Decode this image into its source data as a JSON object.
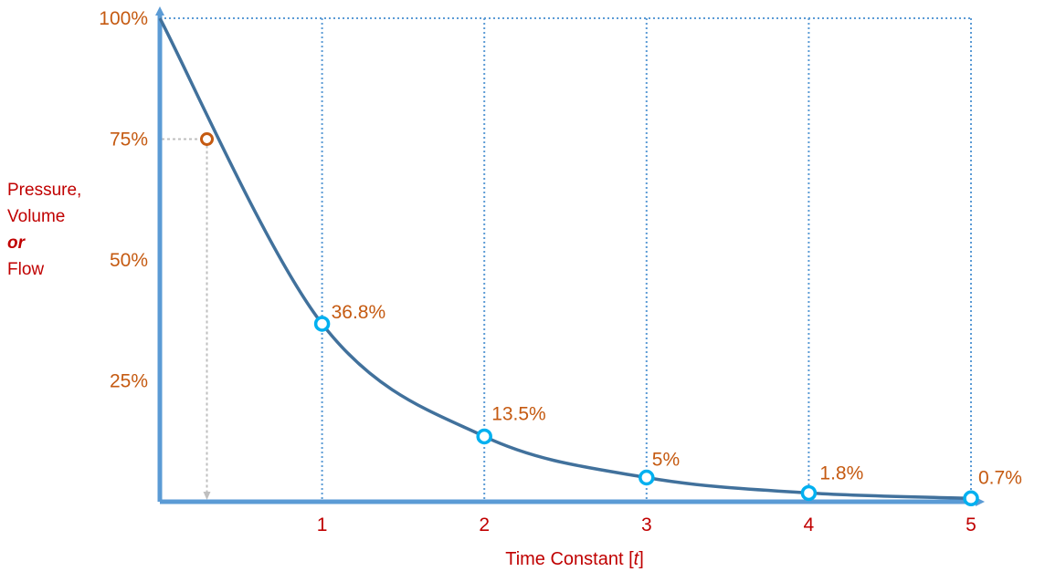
{
  "chart_data": {
    "type": "line",
    "xlabel_prefix": "Time Constant [",
    "xlabel_var": "t",
    "xlabel_suffix": "]",
    "ylabel_lines": [
      "Pressure,",
      "Volume",
      "or",
      "Flow"
    ],
    "x_ticks": [
      "1",
      "2",
      "3",
      "4",
      "5"
    ],
    "y_ticks": [
      {
        "value": 100,
        "label": "100%"
      },
      {
        "value": 75,
        "label": "75%"
      },
      {
        "value": 50,
        "label": "50%"
      },
      {
        "value": 25,
        "label": "25%"
      }
    ],
    "xlim": [
      0,
      5
    ],
    "ylim": [
      0,
      100
    ],
    "series": [
      {
        "x": [
          0,
          1,
          2,
          3,
          4,
          5
        ],
        "y": [
          100,
          36.8,
          13.5,
          5,
          1.8,
          0.7
        ]
      }
    ],
    "highlight_points": [
      {
        "x": 1,
        "y": 36.8,
        "label": "36.8%"
      },
      {
        "x": 2,
        "y": 13.5,
        "label": "13.5%"
      },
      {
        "x": 3,
        "y": 5,
        "label": "5%"
      },
      {
        "x": 4,
        "y": 1.8,
        "label": "1.8%"
      },
      {
        "x": 5,
        "y": 0.7,
        "label": "0.7%"
      }
    ],
    "marker_75": {
      "x": 0.29,
      "y": 75
    },
    "colors": {
      "axis": "#5b9bd5",
      "curve": "#41719c",
      "marker": "#00b0f0",
      "marker_75": "#c55a11",
      "gridline": "#5b9bd5",
      "guide": "#bfbfbf"
    }
  }
}
